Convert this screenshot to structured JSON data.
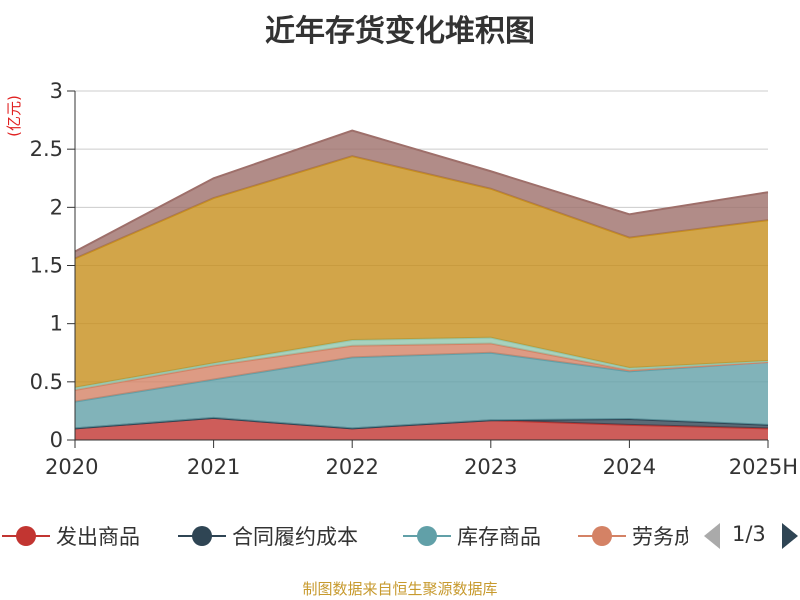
{
  "title": "近年存货变化堆积图",
  "source": "制图数据来自恒生聚源数据库",
  "pager": {
    "text": "1/3"
  },
  "chart_data": {
    "type": "area",
    "stacked": true,
    "unit": "(亿元)",
    "categories": [
      "2020",
      "2021",
      "2022",
      "2023",
      "2024",
      "2025H"
    ],
    "yticks": [
      "0",
      "0.5",
      "1",
      "1.5",
      "2",
      "2.5",
      "3"
    ],
    "ylim": [
      0,
      3
    ],
    "grid": true,
    "legend_position": "bottom",
    "series": [
      {
        "name": "发出商品",
        "color": "#c23531",
        "values": [
          0.1,
          0.19,
          0.1,
          0.17,
          0.13,
          0.1
        ]
      },
      {
        "name": "合同履约成本",
        "color": "#2f4554",
        "values": [
          0.0,
          0.0,
          0.0,
          0.0,
          0.05,
          0.03
        ]
      },
      {
        "name": "库存商品",
        "color": "#61a0a8",
        "values": [
          0.23,
          0.33,
          0.61,
          0.58,
          0.41,
          0.54
        ]
      },
      {
        "name": "劳务成本",
        "color": "#d48265",
        "values": [
          0.1,
          0.12,
          0.1,
          0.08,
          0.01,
          0.0
        ]
      },
      {
        "name": "",
        "color": "#91c7ae",
        "values": [
          0.02,
          0.02,
          0.05,
          0.05,
          0.02,
          0.01
        ]
      },
      {
        "name": "",
        "color": "#c78e1c",
        "values": [
          1.11,
          1.42,
          1.58,
          1.28,
          1.12,
          1.21
        ]
      },
      {
        "name": "",
        "color": "#9e6f6a",
        "values": [
          0.06,
          0.17,
          0.22,
          0.15,
          0.2,
          0.24
        ]
      }
    ]
  }
}
